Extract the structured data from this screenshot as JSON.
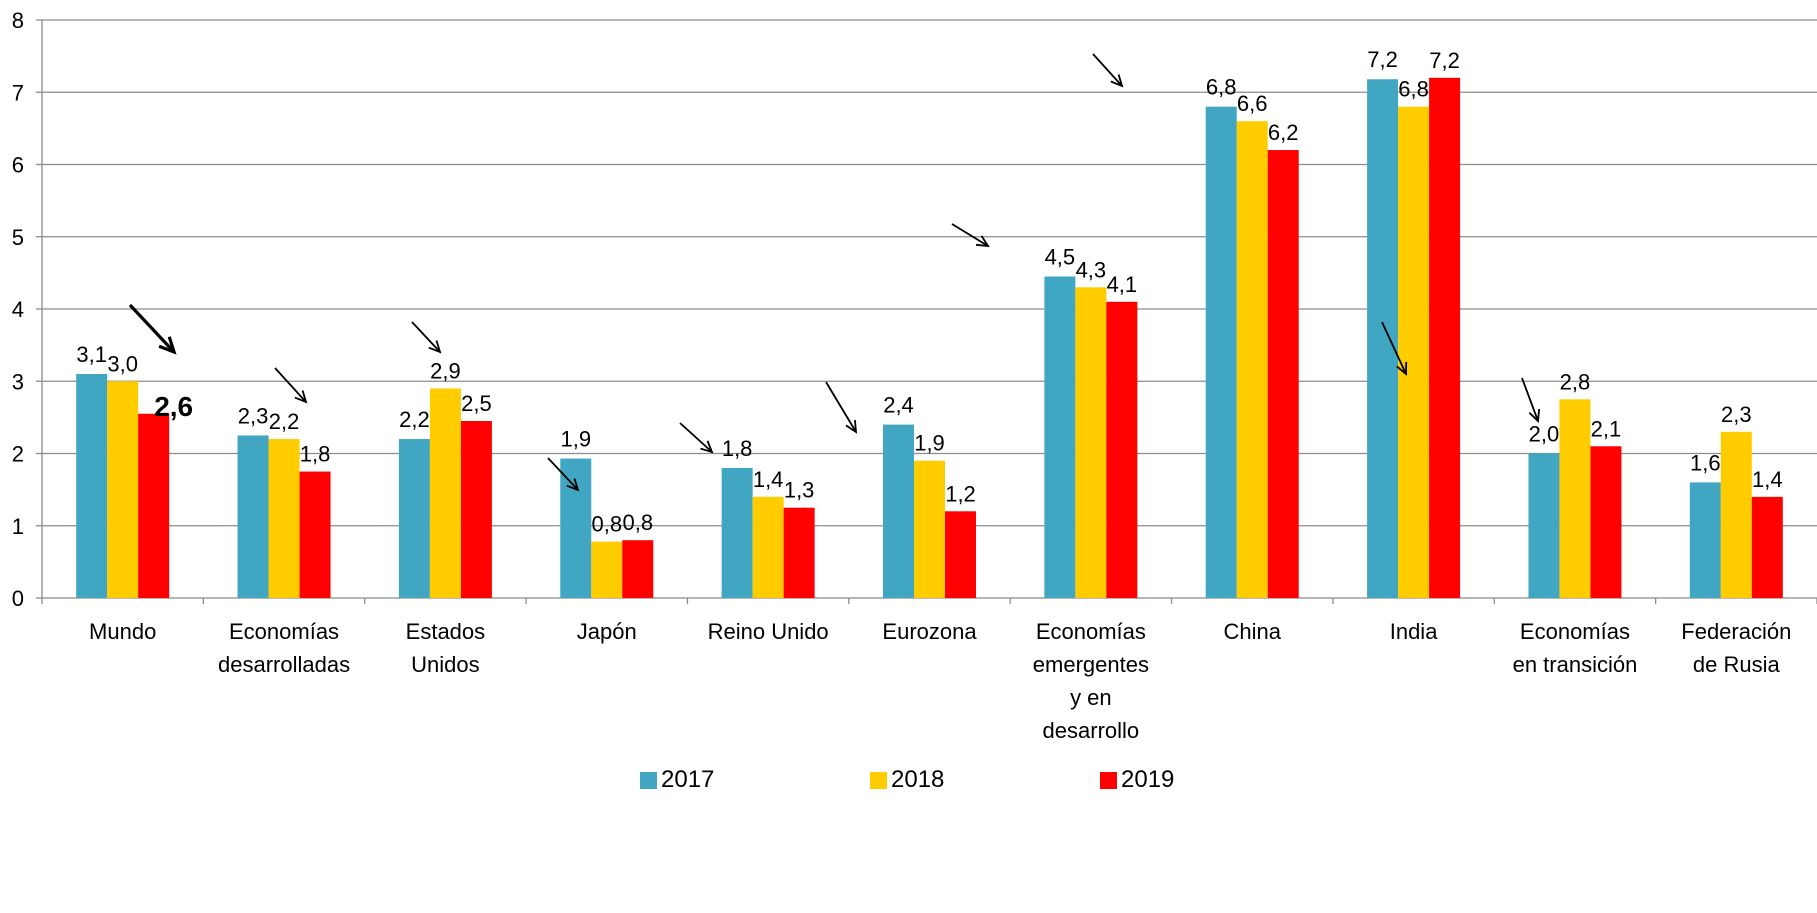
{
  "chart_data": {
    "type": "bar",
    "title": "",
    "xlabel": "",
    "ylabel": "",
    "ylim": [
      0,
      8
    ],
    "yticks": [
      0,
      1,
      2,
      3,
      4,
      5,
      6,
      7,
      8
    ],
    "ytick_labels": [
      "0",
      "1",
      "2",
      "3",
      "4",
      "5",
      "6",
      "7",
      "8"
    ],
    "grid": true,
    "legend_position": "bottom",
    "categories": [
      [
        "Mundo"
      ],
      [
        "Economías",
        "desarrolladas"
      ],
      [
        "Estados",
        "Unidos"
      ],
      [
        "Japón"
      ],
      [
        "Reino Unido"
      ],
      [
        "Eurozona"
      ],
      [
        "Economías",
        "emergentes",
        "y en",
        "desarrollo"
      ],
      [
        "China"
      ],
      [
        "India"
      ],
      [
        "Economías",
        "en transición"
      ],
      [
        "Federación",
        "de Rusia"
      ]
    ],
    "series": [
      {
        "name": "2017",
        "color": "#41a6c1",
        "values": [
          3.1,
          2.25,
          2.2,
          1.93,
          1.8,
          2.4,
          4.45,
          6.8,
          7.18,
          2.0,
          1.6
        ],
        "labels": [
          "3,1",
          "2,3",
          "2,2",
          "1,9",
          "1,8",
          "2,4",
          "4,5",
          "6,8",
          "7,2",
          "2,0",
          "1,6"
        ]
      },
      {
        "name": "2018",
        "color": "#ffcc00",
        "values": [
          3.0,
          2.2,
          2.9,
          0.78,
          1.4,
          1.9,
          4.3,
          6.6,
          6.8,
          2.75,
          2.3
        ],
        "labels": [
          "3,0",
          "2,2",
          "2,9",
          "0,8",
          "1,4",
          "1,9",
          "4,3",
          "6,6",
          "6,8",
          "2,8",
          "2,3"
        ]
      },
      {
        "name": "2019",
        "color": "#ff0000",
        "values": [
          2.55,
          1.75,
          2.45,
          0.8,
          1.25,
          1.2,
          4.1,
          6.2,
          7.2,
          2.1,
          1.4
        ],
        "labels": [
          "2,6",
          "1,8",
          "2,5",
          "0,8",
          "1,3",
          "1,2",
          "4,1",
          "6,2",
          "7,2",
          "2,1",
          "1,4"
        ]
      }
    ],
    "annotations": "downward trend arrows drawn above each category group; larger bold arrow and bold 2019 label for Mundo"
  }
}
